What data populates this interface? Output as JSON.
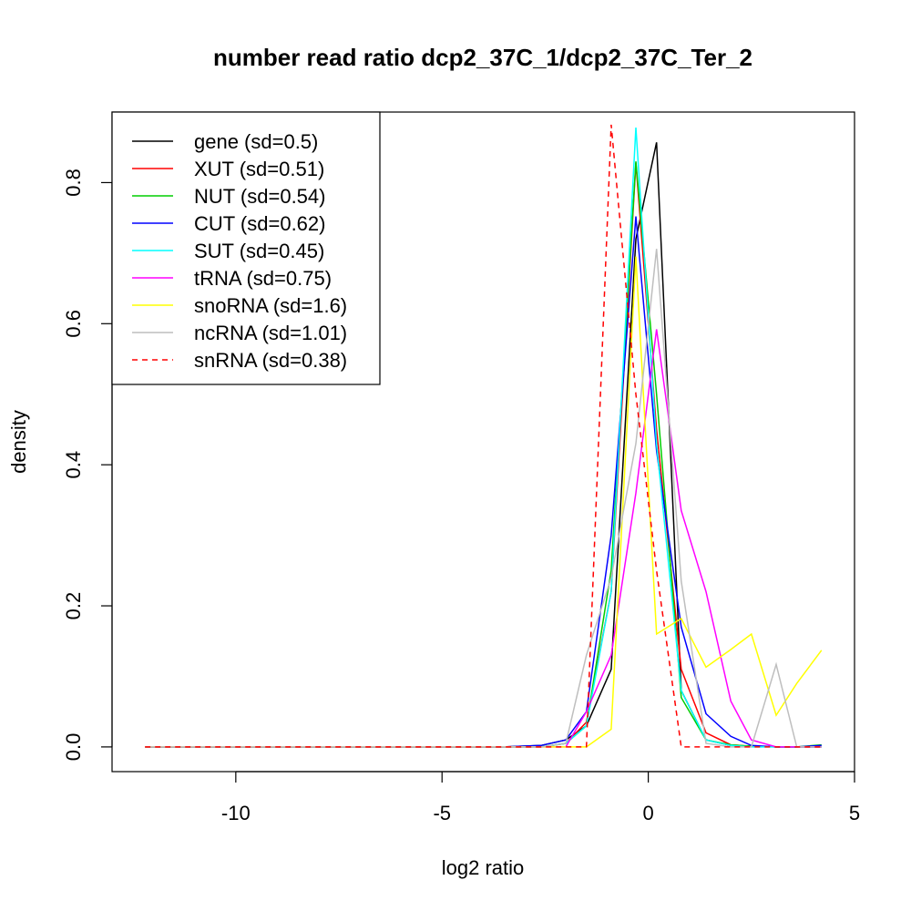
{
  "chart_data": {
    "type": "line",
    "title": "number read ratio dcp2_37C_1/dcp2_37C_Ter_2",
    "xlabel": "log2 ratio",
    "ylabel": "density",
    "xlim": [
      -13,
      5
    ],
    "ylim": [
      -0.035,
      0.9
    ],
    "x_ticks": [
      -10,
      -5,
      0,
      5
    ],
    "y_ticks": [
      0.0,
      0.2,
      0.4,
      0.6,
      0.8
    ],
    "x_tick_labels": [
      "-10",
      "-5",
      "0",
      "5"
    ],
    "y_tick_labels": [
      "0.0",
      "0.2",
      "0.4",
      "0.6",
      "0.8"
    ],
    "grid": false,
    "legend_position": "top-left",
    "series": [
      {
        "name": "gene (sd=0.5)",
        "color": "#000000",
        "dash": "solid",
        "x": [
          -12.2,
          -3.5,
          -2.6,
          -2.0,
          -1.5,
          -0.9,
          -0.3,
          0.2,
          0.8,
          1.4,
          2.0,
          2.5,
          3.1,
          3.6,
          4.2
        ],
        "y": [
          0,
          0,
          0.002,
          0.01,
          0.03,
          0.11,
          0.72,
          0.857,
          0.08,
          0.01,
          0.002,
          0.001,
          0,
          0,
          0
        ]
      },
      {
        "name": "XUT (sd=0.51)",
        "color": "#ff0000",
        "dash": "solid",
        "x": [
          -12.2,
          -3.5,
          -2.6,
          -2.0,
          -1.5,
          -0.9,
          -0.3,
          0.2,
          0.8,
          1.4,
          2.0,
          2.5,
          3.1,
          3.6,
          4.2
        ],
        "y": [
          0,
          0,
          0,
          0.005,
          0.035,
          0.22,
          0.828,
          0.45,
          0.11,
          0.02,
          0.003,
          0.001,
          0,
          0,
          0
        ]
      },
      {
        "name": "NUT (sd=0.54)",
        "color": "#00cd00",
        "dash": "solid",
        "x": [
          -12.2,
          -3.5,
          -2.6,
          -2.0,
          -1.5,
          -0.9,
          -0.3,
          0.2,
          0.8,
          1.4,
          2.0,
          2.5,
          3.1,
          3.6,
          4.2
        ],
        "y": [
          0,
          0,
          0,
          0.005,
          0.03,
          0.25,
          0.83,
          0.5,
          0.07,
          0.01,
          0.003,
          0.001,
          0,
          0,
          0.003
        ]
      },
      {
        "name": "CUT (sd=0.62)",
        "color": "#0000ff",
        "dash": "solid",
        "x": [
          -12.2,
          -3.5,
          -2.6,
          -2.0,
          -1.5,
          -0.9,
          -0.3,
          0.2,
          0.8,
          1.4,
          2.0,
          2.5,
          3.1,
          3.6,
          4.2
        ],
        "y": [
          0,
          0,
          0.002,
          0.01,
          0.05,
          0.3,
          0.752,
          0.42,
          0.17,
          0.047,
          0.015,
          0.002,
          0,
          0,
          0.002
        ]
      },
      {
        "name": "SUT (sd=0.45)",
        "color": "#00ffff",
        "dash": "solid",
        "x": [
          -12.2,
          -3.5,
          -2.6,
          -2.0,
          -1.5,
          -0.9,
          -0.3,
          0.2,
          0.8,
          1.4,
          2.0,
          2.5,
          3.1,
          3.6,
          4.2
        ],
        "y": [
          0,
          0,
          0,
          0.005,
          0.03,
          0.22,
          0.878,
          0.43,
          0.08,
          0.01,
          0.002,
          0,
          0,
          0,
          0
        ]
      },
      {
        "name": "tRNA (sd=0.75)",
        "color": "#ff00ff",
        "dash": "solid",
        "x": [
          -12.2,
          -3.5,
          -2.6,
          -2.0,
          -1.5,
          -0.9,
          -0.3,
          0.2,
          0.8,
          1.4,
          2.0,
          2.5,
          3.1,
          3.6,
          4.2
        ],
        "y": [
          0,
          0,
          0,
          0,
          0.05,
          0.13,
          0.36,
          0.592,
          0.335,
          0.22,
          0.065,
          0.01,
          0,
          0,
          0
        ]
      },
      {
        "name": "snoRNA (sd=1.6)",
        "color": "#ffff00",
        "dash": "solid",
        "x": [
          -12.2,
          -3.5,
          -2.6,
          -2.0,
          -1.5,
          -0.9,
          -0.3,
          0.2,
          0.8,
          1.4,
          2.0,
          2.5,
          3.1,
          3.6,
          4.2
        ],
        "y": [
          0,
          0,
          0,
          0,
          0,
          0.025,
          0.695,
          0.16,
          0.182,
          0.113,
          0.138,
          0.16,
          0.045,
          0.09,
          0.137
        ]
      },
      {
        "name": "ncRNA (sd=1.01)",
        "color": "#bebebe",
        "dash": "solid",
        "x": [
          -12.2,
          -3.5,
          -2.6,
          -2.0,
          -1.5,
          -0.9,
          -0.3,
          0.2,
          0.8,
          1.4,
          2.0,
          2.5,
          3.1,
          3.6,
          4.2
        ],
        "y": [
          0,
          0,
          0,
          0.005,
          0.13,
          0.24,
          0.43,
          0.706,
          0.235,
          0.005,
          0,
          0,
          0.117,
          0,
          0
        ]
      },
      {
        "name": "snRNA (sd=0.38)",
        "color": "#ff0000",
        "dash": "dashed",
        "x": [
          -12.2,
          -3.5,
          -2.6,
          -2.0,
          -1.5,
          -0.9,
          -0.3,
          0.2,
          0.8,
          1.4,
          2.0,
          2.5,
          3.1,
          3.6,
          4.2
        ],
        "y": [
          0,
          0,
          0,
          0,
          0,
          0.882,
          0.5,
          0.25,
          0,
          0,
          0,
          0,
          0,
          0,
          0
        ]
      }
    ]
  }
}
